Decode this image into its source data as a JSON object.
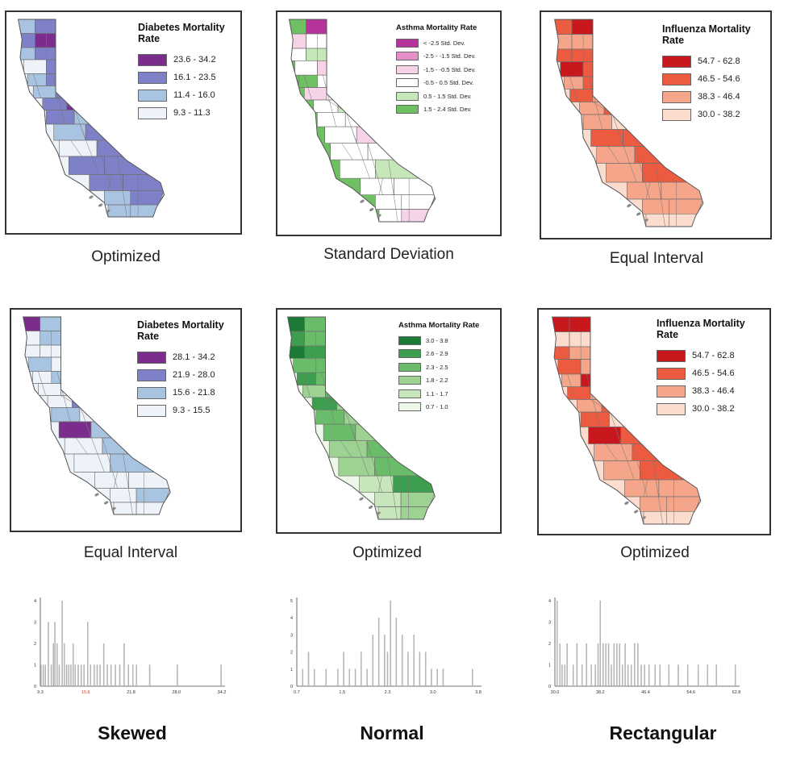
{
  "maps": [
    {
      "title": "Diabetes Mortality Rate",
      "caption": "Optimized",
      "ramp": "purple",
      "classes": [
        {
          "label": "23.6 - 34.2",
          "color": "#7b2d8e"
        },
        {
          "label": "16.1 - 23.5",
          "color": "#7e80c8"
        },
        {
          "label": "11.4 - 16.0",
          "color": "#a9c4e0"
        },
        {
          "label": "9.3 - 11.3",
          "color": "#eef2f9"
        }
      ]
    },
    {
      "title": "Asthma Mortality Rate",
      "caption": "Standard Deviation",
      "ramp": "diverging",
      "classes": [
        {
          "label": "< -2.5 Std. Dev.",
          "color": "#b5339a"
        },
        {
          "label": "-2.5 - -1.5 Std. Dev.",
          "color": "#e48fc9"
        },
        {
          "label": "-1.5 - -0.5 Std. Dev.",
          "color": "#f7d3e8"
        },
        {
          "label": "-0.5 - 0.5 Std. Dev.",
          "color": "#ffffff"
        },
        {
          "label": "0.5 - 1.5 Std. Dev.",
          "color": "#c6e8b8"
        },
        {
          "label": "1.5 - 2.4 Std. Dev.",
          "color": "#6fbf63"
        }
      ]
    },
    {
      "title": "Influenza Mortality Rate",
      "caption": "Equal Interval",
      "ramp": "red",
      "classes": [
        {
          "label": "54.7 - 62.8",
          "color": "#c9171e"
        },
        {
          "label": "46.5 - 54.6",
          "color": "#ec5b3f"
        },
        {
          "label": "38.3 - 46.4",
          "color": "#f4a58a"
        },
        {
          "label": "30.0 - 38.2",
          "color": "#fcdccd"
        }
      ]
    },
    {
      "title": "Diabetes Mortality Rate",
      "caption": "Equal Interval",
      "ramp": "purple-light",
      "classes": [
        {
          "label": "28.1 - 34.2",
          "color": "#7b2d8e"
        },
        {
          "label": "21.9 - 28.0",
          "color": "#7e80c8"
        },
        {
          "label": "15.6 - 21.8",
          "color": "#a9c4e0"
        },
        {
          "label": "9.3 - 15.5",
          "color": "#eef2f9"
        }
      ]
    },
    {
      "title": "Asthma Mortality Rate",
      "caption": "Optimized",
      "ramp": "green",
      "classes": [
        {
          "label": "3.0 - 3.8",
          "color": "#1b7a36"
        },
        {
          "label": "2.6 - 2.9",
          "color": "#3c9e4e"
        },
        {
          "label": "2.3 - 2.5",
          "color": "#6bbc6a"
        },
        {
          "label": "1.8 - 2.2",
          "color": "#9dd292"
        },
        {
          "label": "1.1 - 1.7",
          "color": "#c7e6bb"
        },
        {
          "label": "0.7 - 1.0",
          "color": "#eef8e9"
        }
      ]
    },
    {
      "title": "Influenza Mortality Rate",
      "caption": "Optimized",
      "ramp": "red",
      "classes": [
        {
          "label": "54.7 - 62.8",
          "color": "#c9171e"
        },
        {
          "label": "46.5 - 54.6",
          "color": "#ec5b3f"
        },
        {
          "label": "38.3 - 46.4",
          "color": "#f4a58a"
        },
        {
          "label": "30.0 - 38.2",
          "color": "#fcdccd"
        }
      ]
    }
  ],
  "chart_data": [
    {
      "type": "bar",
      "title": "Skewed",
      "x_ticks": [
        "9.3",
        "15.6",
        "21.8",
        "28.0",
        "34.2"
      ],
      "x_range": [
        9.3,
        34.2
      ],
      "y_ticks": [
        "0",
        "1",
        "2",
        "3",
        "4"
      ],
      "ylim": [
        0,
        4
      ],
      "highlight_tick": "15.6",
      "highlight_color": "#c0392b",
      "x": [
        9.4,
        9.7,
        10.0,
        10.4,
        10.8,
        11.1,
        11.3,
        11.6,
        11.9,
        12.3,
        12.6,
        12.9,
        13.2,
        13.5,
        13.8,
        14.1,
        14.5,
        14.9,
        15.3,
        15.8,
        16.2,
        16.7,
        17.1,
        17.5,
        18.0,
        18.5,
        19.0,
        19.6,
        20.2,
        20.8,
        21.4,
        22.0,
        22.5,
        24.3,
        28.1,
        34.1
      ],
      "y": [
        1,
        1,
        1,
        3,
        1,
        2,
        3,
        2,
        1,
        4,
        2,
        1,
        1,
        1,
        2,
        1,
        1,
        1,
        1,
        3,
        1,
        1,
        1,
        1,
        2,
        1,
        1,
        1,
        1,
        2,
        1,
        1,
        1,
        1,
        1,
        1
      ]
    },
    {
      "type": "bar",
      "title": "Normal",
      "x_ticks": [
        "0.7",
        "1.5",
        "2.3",
        "3.0",
        "3.8"
      ],
      "x_range": [
        0.7,
        3.8
      ],
      "y_ticks": [
        "0",
        "1",
        "2",
        "3",
        "4",
        "5"
      ],
      "ylim": [
        0,
        5
      ],
      "x": [
        0.8,
        0.9,
        1.0,
        1.2,
        1.4,
        1.5,
        1.6,
        1.7,
        1.8,
        1.9,
        2.0,
        2.1,
        2.2,
        2.25,
        2.3,
        2.4,
        2.5,
        2.6,
        2.7,
        2.8,
        2.9,
        3.0,
        3.1,
        3.2,
        3.7
      ],
      "y": [
        1,
        2,
        1,
        1,
        1,
        2,
        1,
        1,
        2,
        1,
        3,
        4,
        3,
        2,
        5,
        4,
        3,
        2,
        3,
        2,
        2,
        1,
        1,
        1,
        1
      ]
    },
    {
      "type": "bar",
      "title": "Rectangular",
      "x_ticks": [
        "30.0",
        "38.2",
        "46.4",
        "54.6",
        "62.8"
      ],
      "x_range": [
        30.0,
        62.8
      ],
      "y_ticks": [
        "0",
        "1",
        "2",
        "3",
        "4"
      ],
      "ylim": [
        0,
        4
      ],
      "x": [
        30.4,
        30.9,
        31.3,
        31.8,
        32.2,
        33.3,
        34.0,
        34.9,
        35.7,
        36.6,
        37.3,
        37.8,
        38.2,
        38.7,
        39.2,
        39.7,
        40.2,
        40.7,
        41.2,
        41.7,
        42.2,
        42.7,
        43.2,
        43.8,
        44.4,
        45.0,
        45.6,
        46.2,
        47.0,
        48.1,
        49.0,
        50.6,
        52.3,
        54.0,
        55.9,
        57.6,
        59.2,
        62.6
      ],
      "y": [
        4,
        2,
        1,
        1,
        2,
        1,
        2,
        1,
        2,
        1,
        1,
        2,
        4,
        2,
        2,
        2,
        1,
        2,
        2,
        2,
        1,
        2,
        1,
        1,
        2,
        2,
        1,
        1,
        1,
        1,
        1,
        1,
        1,
        1,
        1,
        1,
        1,
        1
      ]
    }
  ]
}
